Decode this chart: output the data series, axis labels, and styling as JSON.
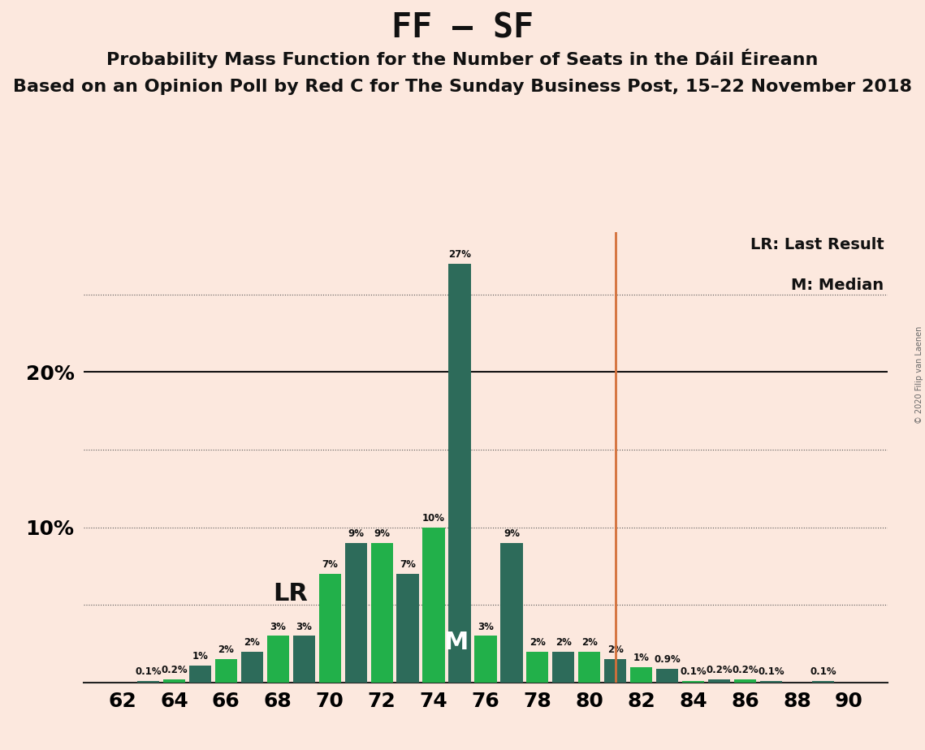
{
  "title": "FF – SF",
  "subtitle1": "Probability Mass Function for the Number of Seats in the Dáil Éireann",
  "subtitle2": "Based on an Opinion Poll by Red C for The Sunday Business Post, 15–22 November 2018",
  "copyright": "© 2020 Filip van Laenen",
  "seats": [
    62,
    63,
    64,
    65,
    66,
    67,
    68,
    69,
    70,
    71,
    72,
    73,
    74,
    75,
    76,
    77,
    78,
    79,
    80,
    81,
    82,
    83,
    84,
    85,
    86,
    87,
    88,
    89,
    90
  ],
  "probabilities": [
    0.0,
    0.1,
    0.2,
    1.1,
    1.5,
    2.0,
    3.0,
    3.0,
    7.0,
    9.0,
    9.0,
    7.0,
    10.0,
    27.0,
    3.0,
    9.0,
    2.0,
    2.0,
    2.0,
    1.5,
    1.0,
    0.9,
    0.1,
    0.2,
    0.2,
    0.1,
    0.0,
    0.1,
    0.0
  ],
  "background_color": "#fce8de",
  "lr_x": 81,
  "median_x": 75,
  "lr_color": "#d4703a",
  "legend_lr": "LR: Last Result",
  "legend_m": "M: Median",
  "ylim": [
    0,
    29
  ],
  "xlabel_ticks": [
    62,
    64,
    66,
    68,
    70,
    72,
    74,
    76,
    78,
    80,
    82,
    84,
    86,
    88,
    90
  ],
  "color_bright_green": "#22b04a",
  "color_dark_teal": "#2d6b5a",
  "title_fontsize": 30,
  "subtitle1_fontsize": 16,
  "subtitle2_fontsize": 16,
  "label_fontsize": 8.5
}
